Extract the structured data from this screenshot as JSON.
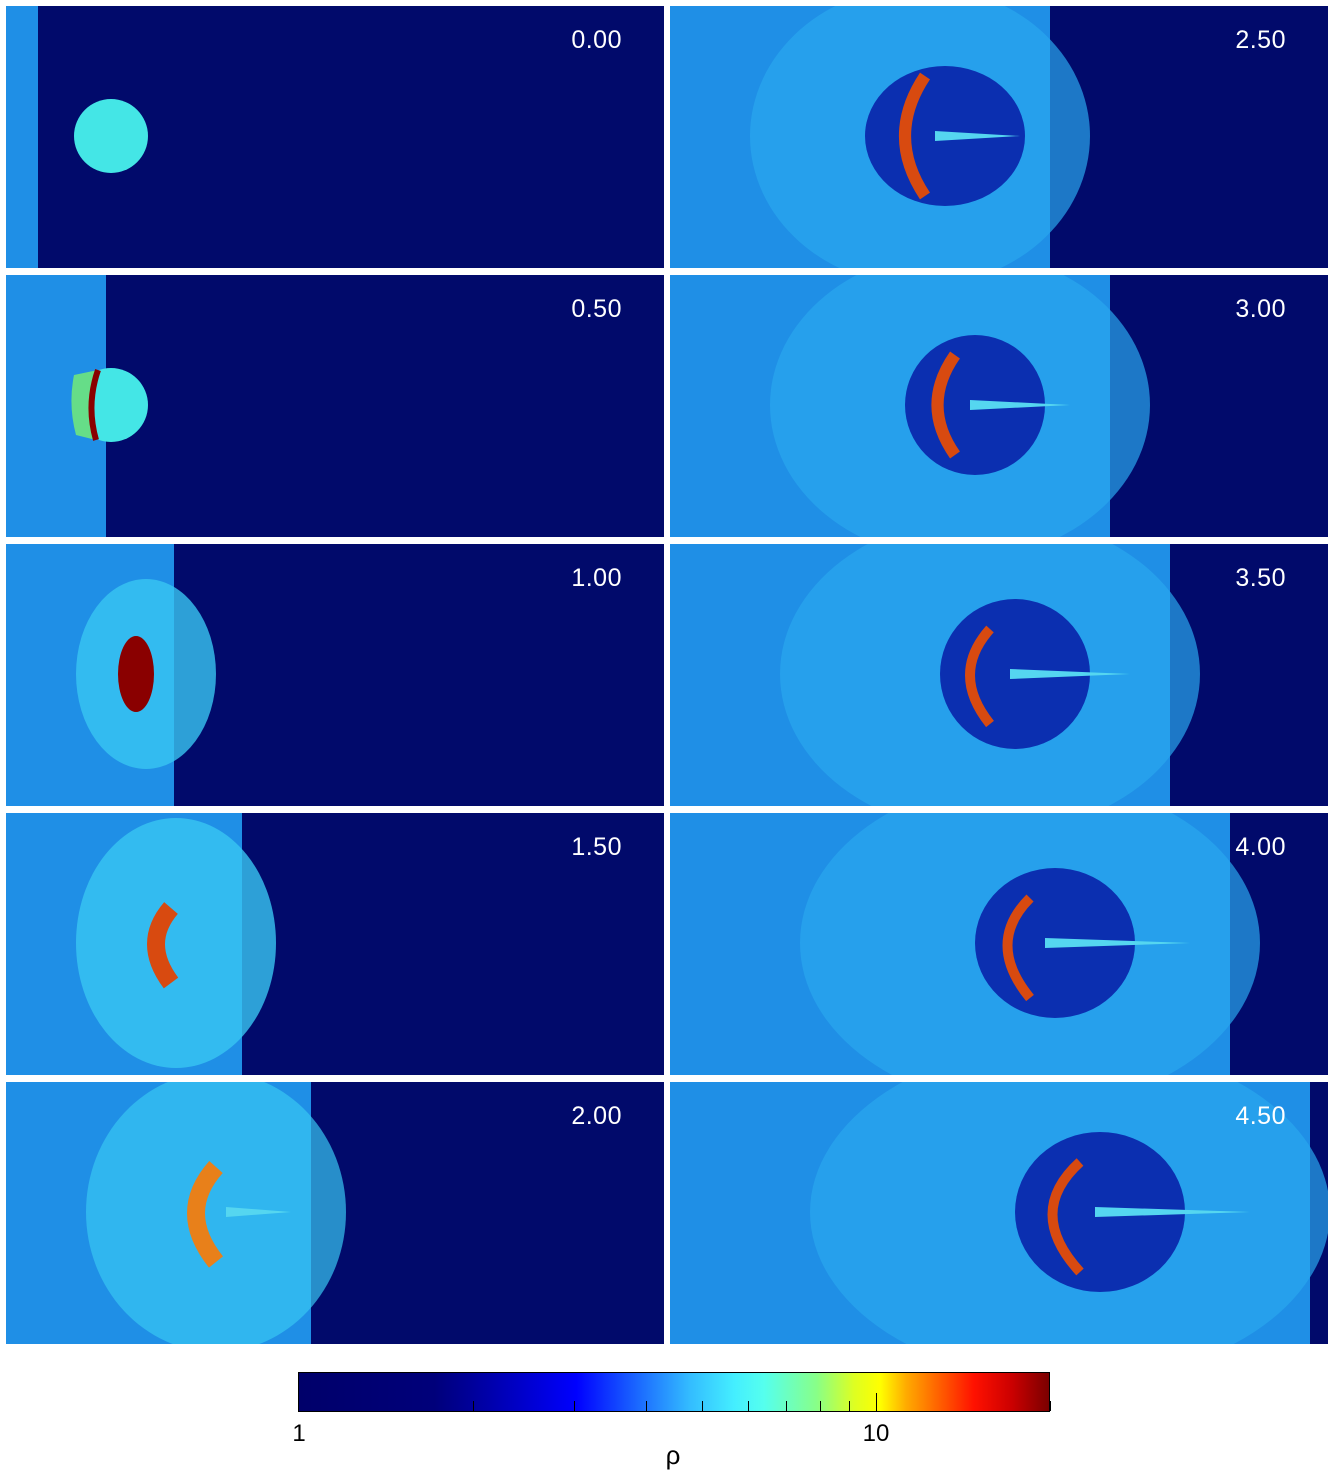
{
  "panels": [
    {
      "time": "0.00"
    },
    {
      "time": "2.50"
    },
    {
      "time": "0.50"
    },
    {
      "time": "3.00"
    },
    {
      "time": "1.00"
    },
    {
      "time": "3.50"
    },
    {
      "time": "1.50"
    },
    {
      "time": "4.00"
    },
    {
      "time": "2.00"
    },
    {
      "time": "4.50"
    }
  ],
  "colorbar": {
    "label_min": "1",
    "label_mid": "10",
    "quantity": "ρ",
    "scale": "log"
  },
  "colors": {
    "background_medium": "#010a6b",
    "shocked_gas": "#1f8fe6",
    "cloud": "#44e6e6",
    "dense_core": "#d84a10"
  }
}
